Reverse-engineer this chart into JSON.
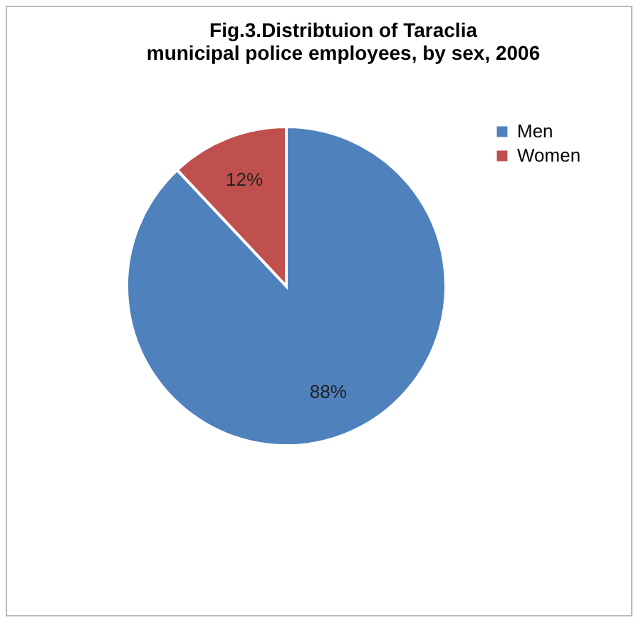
{
  "chart_data": {
    "type": "pie",
    "title": "Fig.3.Distribtuion of Taraclia municipal police employees, by sex, 2006",
    "categories": [
      "Men",
      "Women"
    ],
    "values": [
      88,
      12
    ],
    "colors": [
      "#4f81bd",
      "#c0504d"
    ],
    "value_labels": [
      "88%",
      "12%"
    ],
    "legend": "right"
  }
}
